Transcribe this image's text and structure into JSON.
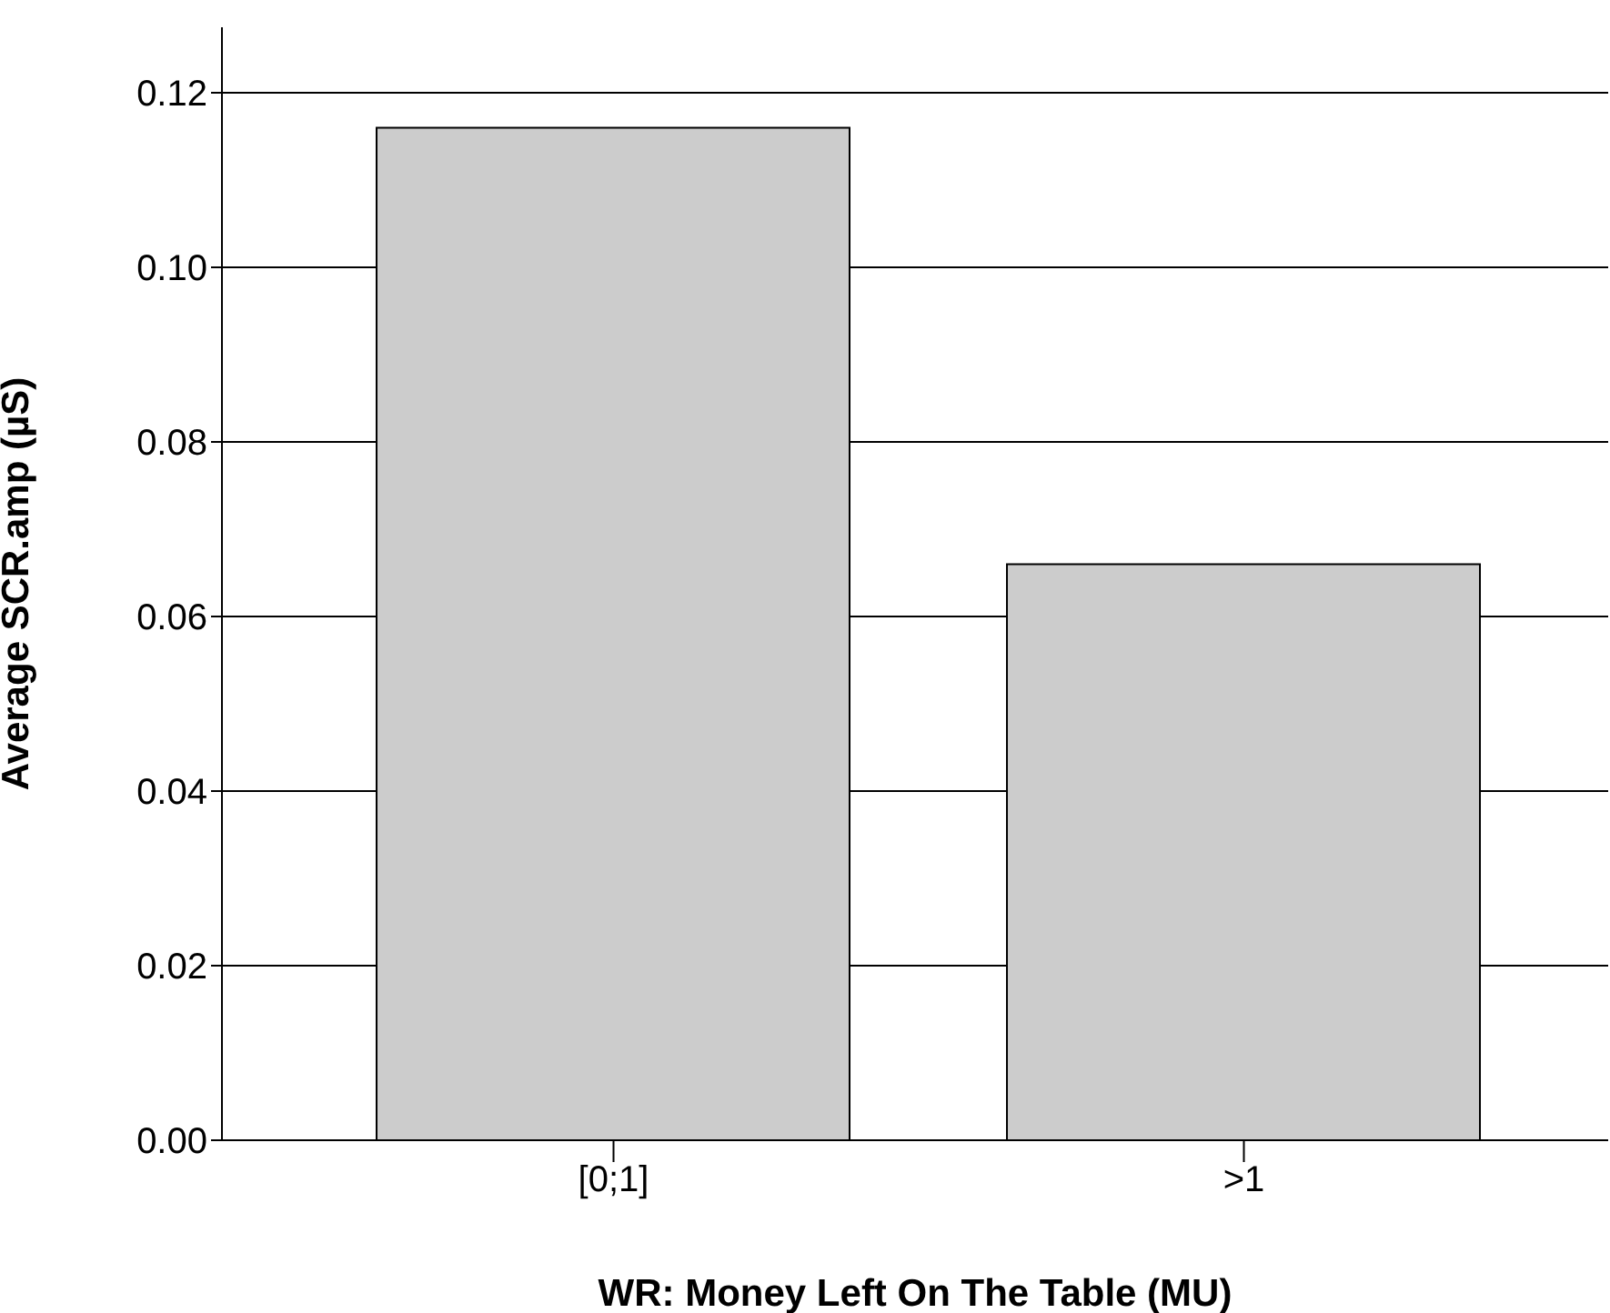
{
  "chart_data": {
    "type": "bar",
    "xlabel": "WR: Money Left On The Table (MU)",
    "ylabel": "Average SCR.amp (µS)",
    "categories": [
      "[0;1]",
      ">1"
    ],
    "values": [
      0.116,
      0.066
    ],
    "color": "#cccccc",
    "ylim": [
      0,
      0.1275
    ],
    "yticks": [
      {
        "value": 0,
        "label": "0.00"
      },
      {
        "value": 0.02,
        "label": "0.02"
      },
      {
        "value": 0.04,
        "label": "0.04"
      },
      {
        "value": 0.06,
        "label": "0.06"
      },
      {
        "value": 0.08,
        "label": "0.08"
      },
      {
        "value": 0.1,
        "label": "0.10"
      },
      {
        "value": 0.12,
        "label": "0.12"
      }
    ],
    "grid": "y"
  }
}
